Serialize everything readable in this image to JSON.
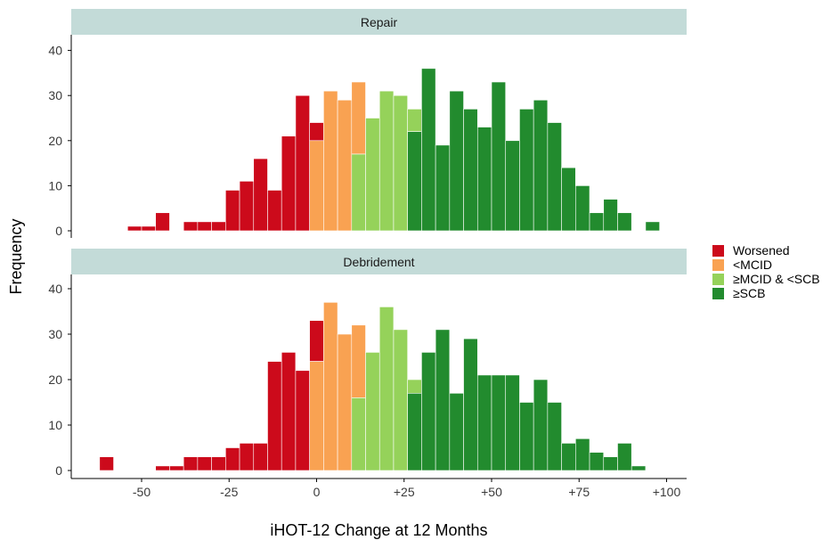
{
  "chart_data": {
    "type": "histogram",
    "xlabel": "iHOT-12 Change at 12 Months",
    "ylabel": "Frequency",
    "xlim": [
      -65,
      105
    ],
    "ylim": [
      0,
      42
    ],
    "x_ticks": [
      -50,
      -25,
      0,
      25,
      50,
      75,
      100
    ],
    "x_tick_labels": [
      "-50",
      "-25",
      "0",
      "+25",
      "+50",
      "+75",
      "+100"
    ],
    "y_ticks": [
      0,
      10,
      20,
      30,
      40
    ],
    "y_tick_labels": [
      "0",
      "10",
      "20",
      "30",
      "40"
    ],
    "bin_width": 4,
    "legend": [
      {
        "label": "Worsened",
        "color": "#cc0a1b"
      },
      {
        "label": "<MCID",
        "color": "#f9a252"
      },
      {
        "label": "≥MCID & <SCB",
        "color": "#95d25a"
      },
      {
        "label": "≥SCB",
        "color": "#228b2e"
      }
    ],
    "panels": [
      {
        "title": "Repair",
        "bars": [
          {
            "x0": -54,
            "x1": -50,
            "value": 1,
            "group": "Worsened"
          },
          {
            "x0": -50,
            "x1": -46,
            "value": 1,
            "group": "Worsened"
          },
          {
            "x0": -46,
            "x1": -42,
            "value": 4,
            "group": "Worsened"
          },
          {
            "x0": -38,
            "x1": -34,
            "value": 2,
            "group": "Worsened"
          },
          {
            "x0": -34,
            "x1": -30,
            "value": 2,
            "group": "Worsened"
          },
          {
            "x0": -30,
            "x1": -26,
            "value": 2,
            "group": "Worsened"
          },
          {
            "x0": -26,
            "x1": -22,
            "value": 9,
            "group": "Worsened"
          },
          {
            "x0": -22,
            "x1": -18,
            "value": 11,
            "group": "Worsened"
          },
          {
            "x0": -18,
            "x1": -14,
            "value": 16,
            "group": "Worsened"
          },
          {
            "x0": -14,
            "x1": -10,
            "value": 9,
            "group": "Worsened"
          },
          {
            "x0": -10,
            "x1": -6,
            "value": 21,
            "group": "Worsened"
          },
          {
            "x0": -6,
            "x1": -2,
            "value": 30,
            "group": "Worsened"
          },
          {
            "x0": -2,
            "x1": 2,
            "value": 24,
            "group": "Worsened",
            "base": 20
          },
          {
            "x0": -2,
            "x1": 2,
            "value": 20,
            "group": "<MCID"
          },
          {
            "x0": 2,
            "x1": 6,
            "value": 31,
            "group": "<MCID"
          },
          {
            "x0": 6,
            "x1": 10,
            "value": 29,
            "group": "<MCID"
          },
          {
            "x0": 10,
            "x1": 14,
            "value": 33,
            "group": "<MCID",
            "base": 17
          },
          {
            "x0": 10,
            "x1": 14,
            "value": 17,
            "group": "≥MCID & <SCB"
          },
          {
            "x0": 14,
            "x1": 18,
            "value": 25,
            "group": "≥MCID & <SCB"
          },
          {
            "x0": 18,
            "x1": 22,
            "value": 31,
            "group": "≥MCID & <SCB"
          },
          {
            "x0": 22,
            "x1": 26,
            "value": 30,
            "group": "≥MCID & <SCB"
          },
          {
            "x0": 26,
            "x1": 30,
            "value": 27,
            "group": "≥MCID & <SCB",
            "base": 22
          },
          {
            "x0": 26,
            "x1": 30,
            "value": 22,
            "group": "≥SCB"
          },
          {
            "x0": 30,
            "x1": 34,
            "value": 36,
            "group": "≥SCB"
          },
          {
            "x0": 34,
            "x1": 38,
            "value": 19,
            "group": "≥SCB"
          },
          {
            "x0": 38,
            "x1": 42,
            "value": 31,
            "group": "≥SCB"
          },
          {
            "x0": 42,
            "x1": 46,
            "value": 27,
            "group": "≥SCB"
          },
          {
            "x0": 46,
            "x1": 50,
            "value": 23,
            "group": "≥SCB"
          },
          {
            "x0": 50,
            "x1": 54,
            "value": 33,
            "group": "≥SCB"
          },
          {
            "x0": 54,
            "x1": 58,
            "value": 20,
            "group": "≥SCB"
          },
          {
            "x0": 58,
            "x1": 62,
            "value": 27,
            "group": "≥SCB"
          },
          {
            "x0": 62,
            "x1": 66,
            "value": 29,
            "group": "≥SCB"
          },
          {
            "x0": 66,
            "x1": 70,
            "value": 24,
            "group": "≥SCB"
          },
          {
            "x0": 70,
            "x1": 74,
            "value": 14,
            "group": "≥SCB"
          },
          {
            "x0": 74,
            "x1": 78,
            "value": 10,
            "group": "≥SCB"
          },
          {
            "x0": 78,
            "x1": 82,
            "value": 4,
            "group": "≥SCB"
          },
          {
            "x0": 82,
            "x1": 86,
            "value": 7,
            "group": "≥SCB"
          },
          {
            "x0": 86,
            "x1": 90,
            "value": 4,
            "group": "≥SCB"
          },
          {
            "x0": 94,
            "x1": 98,
            "value": 2,
            "group": "≥SCB"
          }
        ]
      },
      {
        "title": "Debridement",
        "bars": [
          {
            "x0": -62,
            "x1": -58,
            "value": 3,
            "group": "Worsened"
          },
          {
            "x0": -46,
            "x1": -42,
            "value": 1,
            "group": "Worsened"
          },
          {
            "x0": -42,
            "x1": -38,
            "value": 1,
            "group": "Worsened"
          },
          {
            "x0": -38,
            "x1": -34,
            "value": 3,
            "group": "Worsened"
          },
          {
            "x0": -34,
            "x1": -30,
            "value": 3,
            "group": "Worsened"
          },
          {
            "x0": -30,
            "x1": -26,
            "value": 3,
            "group": "Worsened"
          },
          {
            "x0": -26,
            "x1": -22,
            "value": 5,
            "group": "Worsened"
          },
          {
            "x0": -22,
            "x1": -18,
            "value": 6,
            "group": "Worsened"
          },
          {
            "x0": -18,
            "x1": -14,
            "value": 6,
            "group": "Worsened"
          },
          {
            "x0": -14,
            "x1": -10,
            "value": 24,
            "group": "Worsened"
          },
          {
            "x0": -10,
            "x1": -6,
            "value": 26,
            "group": "Worsened"
          },
          {
            "x0": -6,
            "x1": -2,
            "value": 22,
            "group": "Worsened"
          },
          {
            "x0": -2,
            "x1": 2,
            "value": 33,
            "group": "Worsened",
            "base": 24
          },
          {
            "x0": -2,
            "x1": 2,
            "value": 24,
            "group": "<MCID"
          },
          {
            "x0": 2,
            "x1": 6,
            "value": 37,
            "group": "<MCID"
          },
          {
            "x0": 6,
            "x1": 10,
            "value": 30,
            "group": "<MCID"
          },
          {
            "x0": 10,
            "x1": 14,
            "value": 32,
            "group": "<MCID",
            "base": 16
          },
          {
            "x0": 10,
            "x1": 14,
            "value": 16,
            "group": "≥MCID & <SCB"
          },
          {
            "x0": 14,
            "x1": 18,
            "value": 26,
            "group": "≥MCID & <SCB"
          },
          {
            "x0": 18,
            "x1": 22,
            "value": 36,
            "group": "≥MCID & <SCB"
          },
          {
            "x0": 22,
            "x1": 26,
            "value": 31,
            "group": "≥MCID & <SCB"
          },
          {
            "x0": 26,
            "x1": 30,
            "value": 20,
            "group": "≥MCID & <SCB",
            "base": 17
          },
          {
            "x0": 26,
            "x1": 30,
            "value": 17,
            "group": "≥SCB"
          },
          {
            "x0": 30,
            "x1": 34,
            "value": 26,
            "group": "≥SCB"
          },
          {
            "x0": 34,
            "x1": 38,
            "value": 31,
            "group": "≥SCB"
          },
          {
            "x0": 38,
            "x1": 42,
            "value": 17,
            "group": "≥SCB"
          },
          {
            "x0": 42,
            "x1": 46,
            "value": 29,
            "group": "≥SCB"
          },
          {
            "x0": 46,
            "x1": 50,
            "value": 21,
            "group": "≥SCB"
          },
          {
            "x0": 50,
            "x1": 54,
            "value": 21,
            "group": "≥SCB"
          },
          {
            "x0": 54,
            "x1": 58,
            "value": 21,
            "group": "≥SCB"
          },
          {
            "x0": 58,
            "x1": 62,
            "value": 15,
            "group": "≥SCB"
          },
          {
            "x0": 62,
            "x1": 66,
            "value": 20,
            "group": "≥SCB"
          },
          {
            "x0": 66,
            "x1": 70,
            "value": 15,
            "group": "≥SCB"
          },
          {
            "x0": 70,
            "x1": 74,
            "value": 6,
            "group": "≥SCB"
          },
          {
            "x0": 74,
            "x1": 78,
            "value": 7,
            "group": "≥SCB"
          },
          {
            "x0": 78,
            "x1": 82,
            "value": 4,
            "group": "≥SCB"
          },
          {
            "x0": 82,
            "x1": 86,
            "value": 3,
            "group": "≥SCB"
          },
          {
            "x0": 86,
            "x1": 90,
            "value": 6,
            "group": "≥SCB"
          },
          {
            "x0": 90,
            "x1": 94,
            "value": 1,
            "group": "≥SCB"
          }
        ]
      }
    ],
    "colors": {
      "strip_background": "#c3dbd8",
      "axis_line": "#000000"
    }
  }
}
